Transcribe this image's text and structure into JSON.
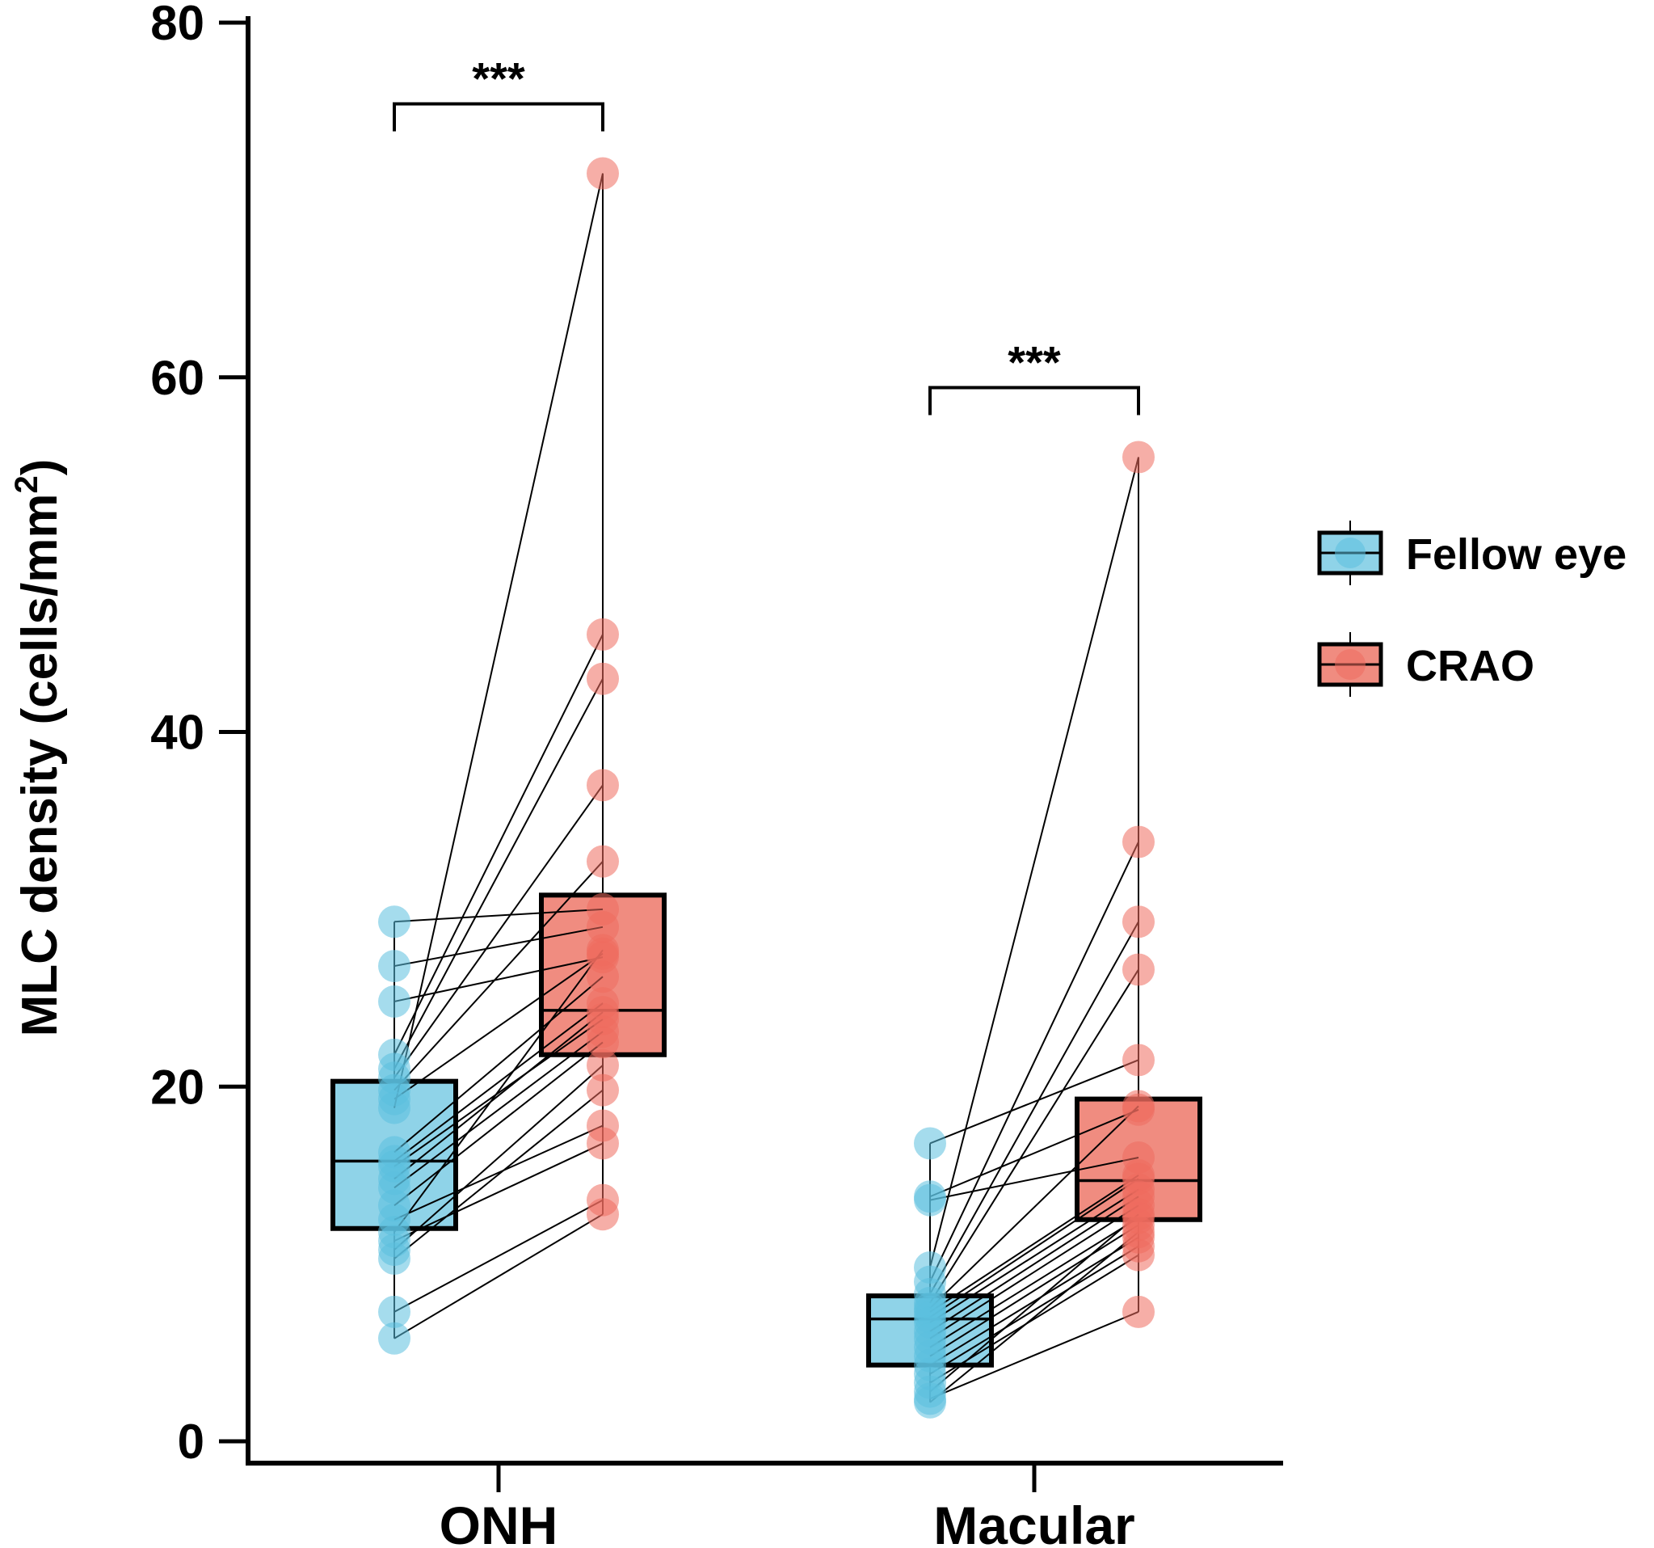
{
  "chart_data": {
    "type": "box_paired_scatter",
    "ylabel_main": "MLC density (cells/mm",
    "ylabel_sup": "2",
    "ylabel_end": ")",
    "ylim": [
      0,
      80
    ],
    "yticks": [
      0,
      20,
      40,
      60,
      80
    ],
    "categories": [
      "ONH",
      "Macular"
    ],
    "legend": [
      {
        "name": "Fellow eye",
        "color": "#5bc0de"
      },
      {
        "name": "CRAO",
        "color": "#ee6b5e"
      }
    ],
    "colors": {
      "fellow_fill": "#8fd3e8",
      "fellow_point": "#5bc0de",
      "crao_fill": "#f08c80",
      "crao_point": "#ee6b5e",
      "line": "#000000"
    },
    "significance": [
      "***",
      "***"
    ],
    "groups": [
      {
        "category": "ONH",
        "fellow_box": {
          "q1": 12.0,
          "median": 15.8,
          "q3": 20.3,
          "whisker_low": 5.8,
          "whisker_high": 29.3
        },
        "crao_box": {
          "q1": 21.8,
          "median": 24.3,
          "q3": 30.8,
          "whisker_low": 12.8,
          "whisker_high": 71.5
        },
        "pairs": [
          [
            29.3,
            30.0
          ],
          [
            26.8,
            29.0
          ],
          [
            24.8,
            27.3
          ],
          [
            21.8,
            45.5
          ],
          [
            21.0,
            43.0
          ],
          [
            20.5,
            37.0
          ],
          [
            19.8,
            32.7
          ],
          [
            19.3,
            27.5
          ],
          [
            18.8,
            71.5
          ],
          [
            16.3,
            26.2
          ],
          [
            15.8,
            24.7
          ],
          [
            15.5,
            23.8
          ],
          [
            14.8,
            24.2
          ],
          [
            14.3,
            23.1
          ],
          [
            13.3,
            22.5
          ],
          [
            12.5,
            17.8
          ],
          [
            11.8,
            27.7
          ],
          [
            11.3,
            16.8
          ],
          [
            10.8,
            21.2
          ],
          [
            10.3,
            19.8
          ],
          [
            7.3,
            13.6
          ],
          [
            5.8,
            12.8
          ]
        ]
      },
      {
        "category": "Macular",
        "fellow_box": {
          "q1": 4.3,
          "median": 6.9,
          "q3": 8.2,
          "whisker_low": 2.2,
          "whisker_high": 16.8
        },
        "crao_box": {
          "q1": 12.5,
          "median": 14.7,
          "q3": 19.3,
          "whisker_low": 7.3,
          "whisker_high": 55.5
        },
        "pairs": [
          [
            16.8,
            21.5
          ],
          [
            13.8,
            18.7
          ],
          [
            13.6,
            16.0
          ],
          [
            9.8,
            55.5
          ],
          [
            9.0,
            33.8
          ],
          [
            8.3,
            29.3
          ],
          [
            7.8,
            26.6
          ],
          [
            7.5,
            18.9
          ],
          [
            7.3,
            15.0
          ],
          [
            7.0,
            14.8
          ],
          [
            6.7,
            14.2
          ],
          [
            6.2,
            13.8
          ],
          [
            5.8,
            13.3
          ],
          [
            5.3,
            12.6
          ],
          [
            4.8,
            12.2
          ],
          [
            4.3,
            11.5
          ],
          [
            3.8,
            11.0
          ],
          [
            3.3,
            10.5
          ],
          [
            2.8,
            12.8
          ],
          [
            2.4,
            7.3
          ],
          [
            2.2,
            11.8
          ]
        ]
      }
    ]
  }
}
